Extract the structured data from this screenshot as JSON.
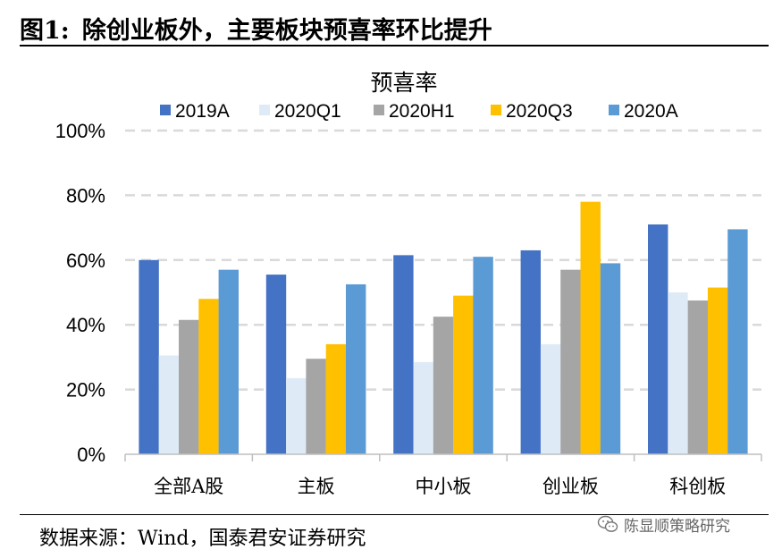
{
  "header": {
    "fig_num": "图1:",
    "title": "除创业板外，主要板块预喜率环比提升"
  },
  "source": "数据来源：Wind，国泰君安证券研究",
  "watermark": {
    "text": "陈显顺策略研究",
    "icon": "wechat-icon"
  },
  "chart_data": {
    "type": "bar",
    "title": "预喜率",
    "xlabel": "",
    "ylabel": "",
    "categories": [
      "全部A股",
      "主板",
      "中小板",
      "创业板",
      "科创板"
    ],
    "series": [
      {
        "name": "2019A",
        "color": "#4472C4",
        "values": [
          60,
          55.5,
          61.5,
          63,
          71
        ]
      },
      {
        "name": "2020Q1",
        "color": "#DEEBF7",
        "values": [
          30.5,
          23.5,
          28.5,
          34,
          50
        ]
      },
      {
        "name": "2020H1",
        "color": "#A5A5A5",
        "values": [
          41.5,
          29.5,
          42.5,
          57,
          47.5
        ]
      },
      {
        "name": "2020Q3",
        "color": "#FFC000",
        "values": [
          48,
          34,
          49,
          78,
          51.5
        ]
      },
      {
        "name": "2020A",
        "color": "#5B9BD5",
        "values": [
          57,
          52.5,
          61,
          59,
          69.5
        ]
      }
    ],
    "ylim": [
      0,
      100
    ],
    "yticks": [
      0,
      20,
      40,
      60,
      80,
      100
    ],
    "ytick_format": "%",
    "grid": true,
    "legend_position": "top"
  }
}
